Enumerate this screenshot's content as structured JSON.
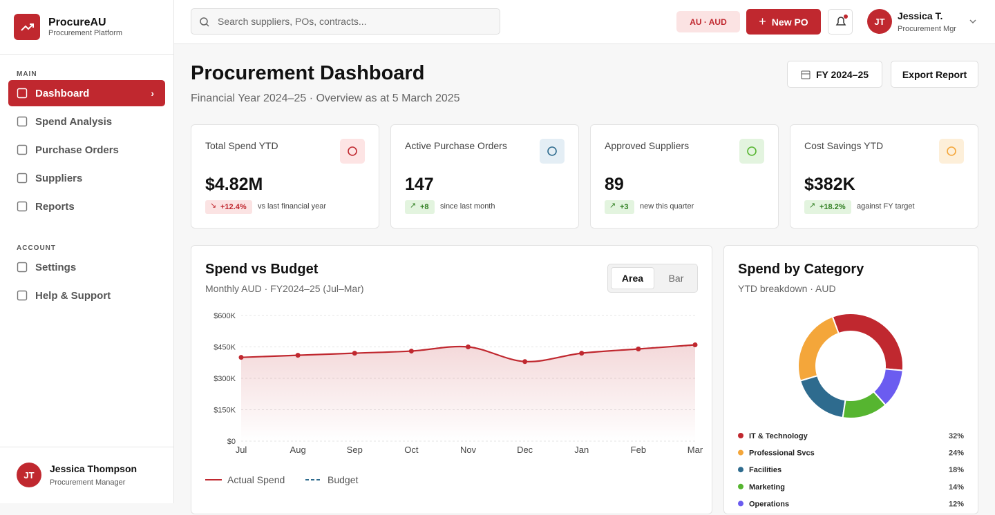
{
  "sidebar": {
    "brand": "ProcureAU",
    "brand_sub": "Procurement Platform",
    "sections": [
      {
        "title": "MAIN",
        "items": [
          "Dashboard",
          "Spend Analysis",
          "Purchase Orders",
          "Suppliers",
          "Reports"
        ]
      },
      {
        "title": "ACCOUNT",
        "items": [
          "Settings",
          "Help & Support"
        ]
      }
    ],
    "user": {
      "initials": "JT",
      "name": "Jessica Thompson",
      "role": "Procurement Manager"
    }
  },
  "topbar": {
    "search_placeholder": "Search suppliers, POs, contracts...",
    "region": "AU · AUD",
    "new_po": "New PO",
    "user": {
      "initials": "JT",
      "name": "Jessica T.",
      "role": "Procurement Mgr"
    }
  },
  "header": {
    "title": "Procurement Dashboard",
    "subtitle": "Financial Year 2024–25 · Overview as at 5 March 2025",
    "fy_button": "FY 2024–25",
    "export_button": "Export Report"
  },
  "kpis": [
    {
      "label": "Total Spend YTD",
      "value": "$4.82M",
      "delta": "+12.4%",
      "note": "vs last financial year"
    },
    {
      "label": "Active Purchase Orders",
      "value": "147",
      "delta": "+8",
      "note": "since last month"
    },
    {
      "label": "Approved Suppliers",
      "value": "89",
      "delta": "+3",
      "note": "new this quarter"
    },
    {
      "label": "Cost Savings YTD",
      "value": "$382K",
      "delta": "+18.2%",
      "note": "against FY target"
    }
  ],
  "chart_data": [
    {
      "type": "area",
      "title": "Spend vs Budget",
      "subtitle": "Monthly AUD · FY2024–25 (Jul–Mar)",
      "toggle": [
        "Area",
        "Bar"
      ],
      "categories": [
        "Jul",
        "Aug",
        "Sep",
        "Oct",
        "Nov",
        "Dec",
        "Jan",
        "Feb",
        "Mar"
      ],
      "series": [
        {
          "name": "Actual Spend",
          "color": "#c0282f",
          "values": [
            400000,
            410000,
            420000,
            430000,
            450000,
            380000,
            420000,
            440000,
            460000
          ]
        }
      ],
      "budget_label": "Budget",
      "budget_color": "#2e6b8e",
      "ylim": [
        0,
        600000
      ],
      "yticks": [
        {
          "value": 0,
          "label": "$0"
        },
        {
          "value": 150000,
          "label": "$150K"
        },
        {
          "value": 300000,
          "label": "$300K"
        },
        {
          "value": 450000,
          "label": "$450K"
        },
        {
          "value": 600000,
          "label": "$600K"
        }
      ],
      "grid": true
    },
    {
      "type": "donut",
      "title": "Spend by Category",
      "subtitle": "YTD breakdown · AUD",
      "categories": [
        "IT & Technology",
        "Professional Svcs",
        "Facilities",
        "Marketing",
        "Operations"
      ],
      "values": [
        32,
        24,
        18,
        14,
        12
      ],
      "value_labels": [
        "32%",
        "24%",
        "18%",
        "14%",
        "12%"
      ],
      "colors": [
        "#c0282f",
        "#f4a63a",
        "#2e6b8e",
        "#56b530",
        "#6b5cf0"
      ]
    }
  ]
}
